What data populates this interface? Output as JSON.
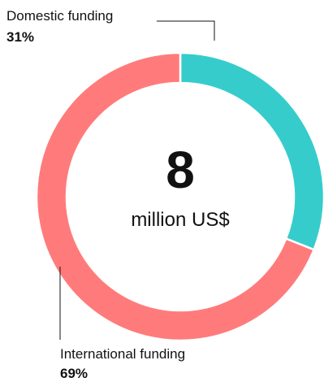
{
  "chart_data": {
    "type": "pie",
    "style": "donut",
    "center_value": "8",
    "center_unit": "million US$",
    "slices": [
      {
        "label": "Domestic funding",
        "percent_label": "31%",
        "value": 31,
        "color": "#36cccc"
      },
      {
        "label": "International funding",
        "percent_label": "69%",
        "value": 69,
        "color": "#ff7b7b"
      }
    ]
  }
}
